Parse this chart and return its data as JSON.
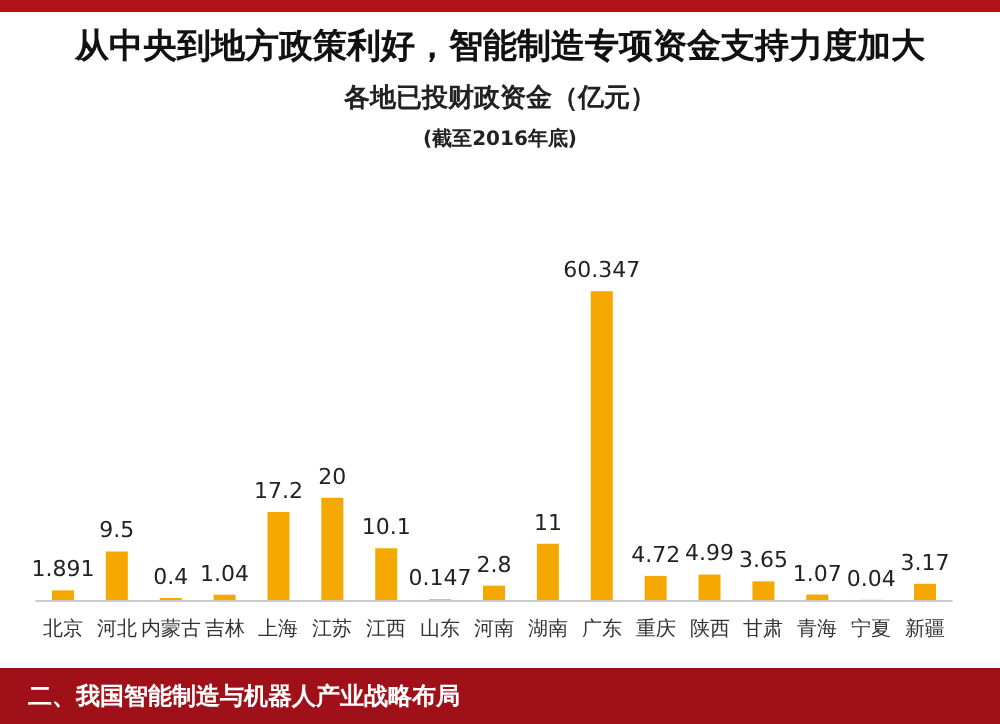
{
  "chart_data": {
    "type": "bar",
    "title": "从中央到地方政策利好，智能制造专项资金支持力度加大",
    "subtitle": "各地已投财政资金（亿元）",
    "annotations": [
      "(截至2016年底)",
      "二、我国智能制造与机器人产业战略布局"
    ],
    "categories": [
      "北京",
      "河北",
      "内蒙古",
      "吉林",
      "上海",
      "江苏",
      "江西",
      "山东",
      "河南",
      "湖南",
      "广东",
      "重庆",
      "陕西",
      "甘肃",
      "青海",
      "宁夏",
      "新疆"
    ],
    "values": [
      1.891,
      9.5,
      0.4,
      1.04,
      17.2,
      20,
      10.1,
      0.147,
      2.8,
      11,
      60.347,
      4.72,
      4.99,
      3.65,
      1.07,
      0.04,
      3.17
    ],
    "color": "#f5a800",
    "data_labels": true
  }
}
